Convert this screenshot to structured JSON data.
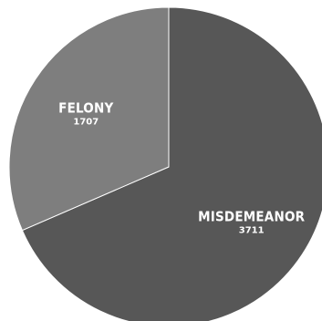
{
  "chart_data": {
    "type": "pie",
    "title": "",
    "slices": [
      {
        "name": "MISDEMEANOR",
        "value": 3711,
        "value_label": "3711",
        "color": "#575757"
      },
      {
        "name": "FELONY",
        "value": 1707,
        "value_label": "1707",
        "color": "#7e7e7e"
      }
    ],
    "border_color": "#ffffff",
    "start_angle_deg": 0,
    "direction": "clockwise"
  }
}
